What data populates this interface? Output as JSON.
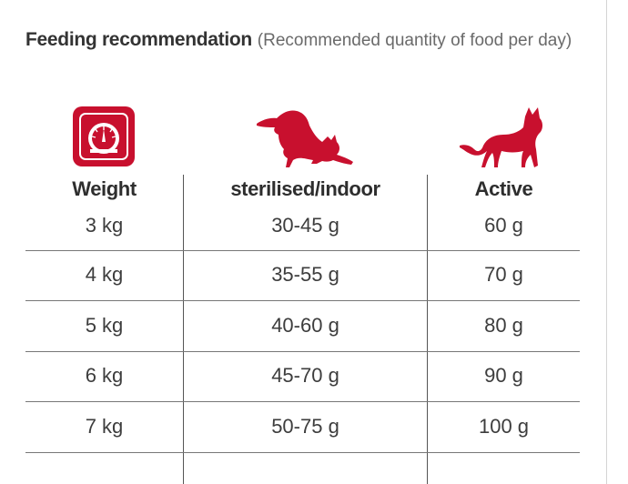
{
  "heading": {
    "bold": "Feeding recommendation",
    "light": "(Recommended quantity of food per day)"
  },
  "icons": {
    "weight": "scale-icon",
    "sterilised": "stretching-cat-icon",
    "active": "standing-cat-icon",
    "color": "#c8102e"
  },
  "table": {
    "headers": [
      "Weight",
      "sterilised/indoor",
      "Active"
    ],
    "rows": [
      [
        "3 kg",
        "30-45 g",
        "60 g"
      ],
      [
        "4 kg",
        "35-55 g",
        "70 g"
      ],
      [
        "5 kg",
        "40-60 g",
        "80 g"
      ],
      [
        "6 kg",
        "45-70 g",
        "90 g"
      ],
      [
        "7 kg",
        "50-75 g",
        "100 g"
      ]
    ]
  }
}
